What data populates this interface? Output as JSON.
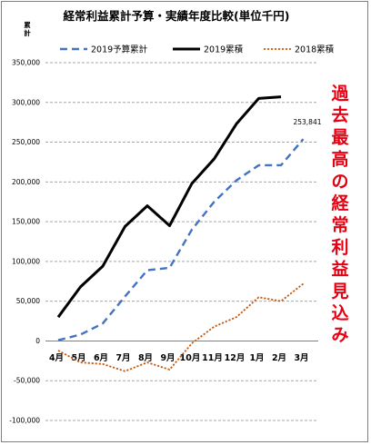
{
  "chart_data": {
    "type": "line",
    "title": "経常利益累計予算・実績年度比較(単位千円)",
    "ylabel": "累計",
    "categories": [
      "4月",
      "5月",
      "6月",
      "7月",
      "8月",
      "9月",
      "10月",
      "11月",
      "12月",
      "1月",
      "2月",
      "3月"
    ],
    "ylim": [
      -100000,
      350000
    ],
    "yticks": [
      "350,000",
      "300,000",
      "250,000",
      "200,000",
      "150,000",
      "100,000",
      "50,000",
      "0",
      "-50,000",
      "-100,000"
    ],
    "grid": true,
    "legend_position": "top",
    "series": [
      {
        "name": "2019予算累計",
        "color": "#4472c4",
        "style": "dashed",
        "values": [
          1000,
          8000,
          22000,
          56000,
          89000,
          92000,
          140000,
          175000,
          202000,
          221000,
          221000,
          253841
        ]
      },
      {
        "name": "2019累積",
        "color": "#000000",
        "style": "solid",
        "values": [
          30000,
          68000,
          94000,
          144000,
          170000,
          145000,
          198000,
          229000,
          273000,
          305000,
          307000,
          null
        ]
      },
      {
        "name": "2018累積",
        "color": "#c55a11",
        "style": "dotted",
        "values": [
          -12000,
          -27000,
          -29000,
          -38000,
          -27000,
          -36000,
          -3000,
          18000,
          30000,
          55000,
          50000,
          72000
        ]
      }
    ],
    "annotations": {
      "last_value": "253,841",
      "side_text": "過去最高の経常利益見込み"
    }
  }
}
